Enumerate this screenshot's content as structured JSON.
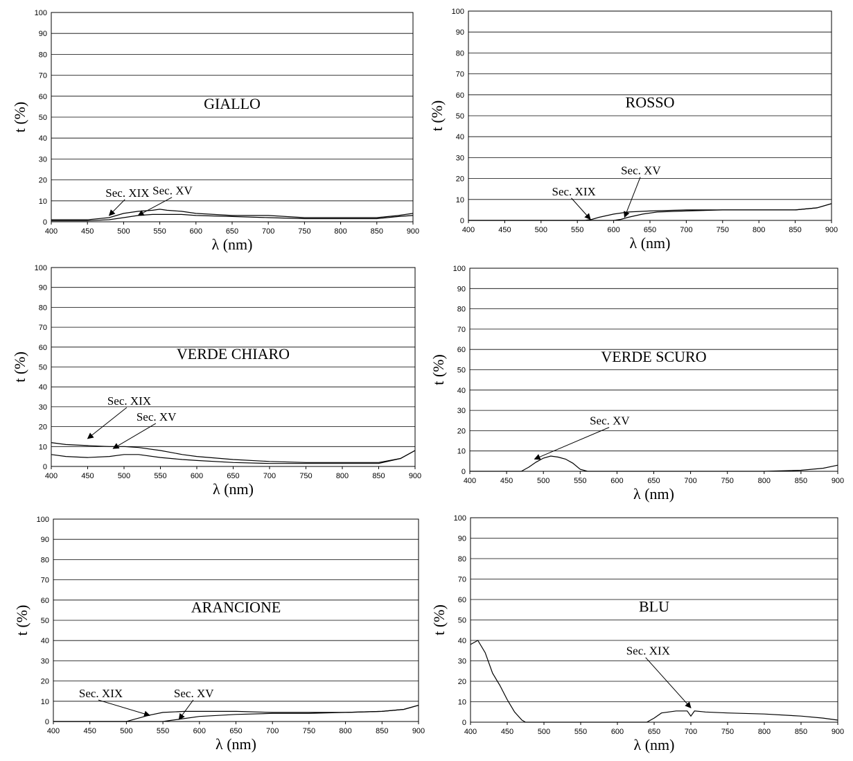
{
  "chart_data": [
    {
      "type": "line",
      "title": "GIALLO",
      "xlabel": "λ (nm)",
      "ylabel": "t (%)",
      "xlim": [
        400,
        900
      ],
      "ylim": [
        0,
        100
      ],
      "x_ticks": [
        "400",
        "450",
        "500",
        "550",
        "600",
        "650",
        "700",
        "750",
        "800",
        "850",
        "900"
      ],
      "y_ticks": [
        "0",
        "10",
        "20",
        "30",
        "40",
        "50",
        "60",
        "70",
        "80",
        "90",
        "100"
      ],
      "grid": true,
      "series": [
        {
          "name": "Sec. XIX",
          "x": [
            400,
            450,
            480,
            500,
            520,
            540,
            550,
            560,
            580,
            600,
            650,
            700,
            750,
            800,
            850,
            880,
            900
          ],
          "y": [
            1,
            1,
            2,
            4,
            5,
            5.5,
            6,
            5.5,
            5,
            4,
            3,
            3,
            2,
            2,
            2,
            3,
            4
          ]
        },
        {
          "name": "Sec. XV",
          "x": [
            400,
            450,
            480,
            500,
            520,
            540,
            560,
            580,
            600,
            650,
            700,
            750,
            800,
            850,
            880,
            900
          ],
          "y": [
            0.5,
            0.5,
            1,
            2,
            3,
            3.5,
            3.5,
            3.5,
            3,
            2.5,
            2,
            1.5,
            1.5,
            1.5,
            2.5,
            3
          ]
        }
      ],
      "annotations": [
        {
          "text": "Sec. XIX",
          "x": 475,
          "y": 12,
          "tx": 480,
          "ty": 3
        },
        {
          "text": "Sec. XV",
          "x": 540,
          "y": 13,
          "tx": 520,
          "ty": 3
        }
      ]
    },
    {
      "type": "line",
      "title": "ROSSO",
      "xlabel": "λ (nm)",
      "ylabel": "t (%)",
      "xlim": [
        400,
        900
      ],
      "ylim": [
        0,
        100
      ],
      "x_ticks": [
        "400",
        "450",
        "500",
        "550",
        "600",
        "650",
        "700",
        "750",
        "800",
        "850",
        "900"
      ],
      "y_ticks": [
        "0",
        "10",
        "20",
        "30",
        "40",
        "50",
        "60",
        "70",
        "80",
        "90",
        "100"
      ],
      "grid": true,
      "series": [
        {
          "name": "Sec. XIX",
          "x": [
            400,
            560,
            570,
            580,
            600,
            620,
            650,
            700,
            750,
            800,
            850,
            880,
            900
          ],
          "y": [
            0,
            0,
            0.5,
            1.5,
            3,
            4,
            4.5,
            5,
            5,
            5,
            5,
            6,
            8
          ]
        },
        {
          "name": "Sec. XV",
          "x": [
            400,
            600,
            610,
            620,
            640,
            660,
            700,
            750,
            800,
            850,
            880,
            900
          ],
          "y": [
            0,
            0,
            0.5,
            1.5,
            3,
            4,
            4.5,
            5,
            5,
            5,
            6,
            8
          ]
        }
      ],
      "annotations": [
        {
          "text": "Sec. XIX",
          "x": 515,
          "y": 12,
          "tx": 568,
          "ty": 0.5
        },
        {
          "text": "Sec. XV",
          "x": 610,
          "y": 22,
          "tx": 615,
          "ty": 1.5
        }
      ]
    },
    {
      "type": "line",
      "title": "VERDE CHIARO",
      "xlabel": "λ (nm)",
      "ylabel": "t (%)",
      "xlim": [
        400,
        900
      ],
      "ylim": [
        0,
        100
      ],
      "x_ticks": [
        "400",
        "450",
        "500",
        "550",
        "600",
        "650",
        "700",
        "750",
        "800",
        "850",
        "900"
      ],
      "y_ticks": [
        "0",
        "10",
        "20",
        "30",
        "40",
        "50",
        "60",
        "70",
        "80",
        "90",
        "100"
      ],
      "grid": true,
      "series": [
        {
          "name": "Sec. XIX",
          "x": [
            400,
            420,
            450,
            480,
            500,
            520,
            550,
            580,
            600,
            650,
            700,
            750,
            800,
            850,
            880,
            900
          ],
          "y": [
            12,
            11,
            10.5,
            10,
            10,
            9.5,
            8,
            6,
            5,
            3.5,
            2.5,
            2,
            2,
            2,
            4,
            8
          ]
        },
        {
          "name": "Sec. XV",
          "x": [
            400,
            420,
            450,
            480,
            500,
            520,
            550,
            580,
            600,
            650,
            700,
            750,
            800,
            850,
            880,
            900
          ],
          "y": [
            6,
            5,
            4.5,
            5,
            6,
            6,
            4.5,
            3.5,
            3,
            2,
            1.5,
            1.5,
            1.5,
            1.5,
            4,
            8
          ]
        }
      ],
      "annotations": [
        {
          "text": "Sec. XIX",
          "x": 477,
          "y": 31,
          "tx": 450,
          "ty": 14
        },
        {
          "text": "Sec. XV",
          "x": 517,
          "y": 23,
          "tx": 485,
          "ty": 9
        }
      ]
    },
    {
      "type": "line",
      "title": "VERDE SCURO",
      "xlabel": "λ (nm)",
      "ylabel": "t (%)",
      "xlim": [
        400,
        900
      ],
      "ylim": [
        0,
        100
      ],
      "x_ticks": [
        "400",
        "450",
        "500",
        "550",
        "600",
        "650",
        "700",
        "750",
        "800",
        "850",
        "900"
      ],
      "y_ticks": [
        "0",
        "10",
        "20",
        "30",
        "40",
        "50",
        "60",
        "70",
        "80",
        "90",
        "100"
      ],
      "grid": true,
      "series": [
        {
          "name": "Sec. XV",
          "x": [
            400,
            470,
            480,
            490,
            500,
            510,
            520,
            530,
            540,
            550,
            560,
            800,
            850,
            880,
            900
          ],
          "y": [
            0,
            0,
            2,
            4.5,
            6.5,
            7.5,
            7,
            6,
            4,
            1,
            0,
            0,
            0.5,
            1.5,
            3
          ]
        }
      ],
      "annotations": [
        {
          "text": "Sec. XV",
          "x": 563,
          "y": 23,
          "tx": 488,
          "ty": 6
        }
      ]
    },
    {
      "type": "line",
      "title": "ARANCIONE",
      "xlabel": "λ (nm)",
      "ylabel": "t (%)",
      "xlim": [
        400,
        900
      ],
      "ylim": [
        0,
        100
      ],
      "x_ticks": [
        "400",
        "450",
        "500",
        "550",
        "600",
        "650",
        "700",
        "750",
        "800",
        "850",
        "900"
      ],
      "y_ticks": [
        "0",
        "10",
        "20",
        "30",
        "40",
        "50",
        "60",
        "70",
        "80",
        "90",
        "100"
      ],
      "grid": true,
      "series": [
        {
          "name": "Sec. XIX",
          "x": [
            400,
            500,
            510,
            520,
            530,
            550,
            580,
            600,
            650,
            700,
            750,
            800,
            850,
            880,
            900
          ],
          "y": [
            0,
            0,
            1,
            2,
            3,
            4.5,
            5,
            5,
            5,
            4.5,
            4.5,
            4.5,
            5,
            6,
            8
          ]
        },
        {
          "name": "Sec. XV",
          "x": [
            400,
            550,
            560,
            580,
            600,
            650,
            700,
            750,
            800,
            850,
            880,
            900
          ],
          "y": [
            0,
            0,
            0.5,
            1.5,
            2.5,
            3.5,
            4,
            4,
            4.5,
            5,
            6,
            8
          ]
        }
      ],
      "annotations": [
        {
          "text": "Sec. XIX",
          "x": 435,
          "y": 12,
          "tx": 532,
          "ty": 3
        },
        {
          "text": "Sec. XV",
          "x": 565,
          "y": 12,
          "tx": 572,
          "ty": 1
        }
      ]
    },
    {
      "type": "line",
      "title": "BLU",
      "xlabel": "λ (nm)",
      "ylabel": "t (%)",
      "xlim": [
        400,
        900
      ],
      "ylim": [
        0,
        100
      ],
      "x_ticks": [
        "400",
        "450",
        "500",
        "550",
        "600",
        "650",
        "700",
        "750",
        "800",
        "850",
        "900"
      ],
      "y_ticks": [
        "0",
        "10",
        "20",
        "30",
        "40",
        "50",
        "60",
        "70",
        "80",
        "90",
        "100"
      ],
      "grid": true,
      "series": [
        {
          "name": "Sec. XIX",
          "x": [
            400,
            410,
            420,
            430,
            440,
            450,
            460,
            470,
            475,
            640,
            650,
            660,
            680,
            695,
            700,
            705,
            720,
            750,
            800,
            850,
            880,
            900
          ],
          "y": [
            38,
            40,
            34,
            24,
            18,
            11,
            5,
            1,
            0,
            0,
            2,
            4.5,
            5.5,
            5.5,
            3,
            5.5,
            5,
            4.5,
            4,
            3,
            2,
            1
          ]
        }
      ],
      "annotations": [
        {
          "text": "Sec. XIX",
          "x": 612,
          "y": 33,
          "tx": 700,
          "ty": 7
        }
      ]
    }
  ]
}
